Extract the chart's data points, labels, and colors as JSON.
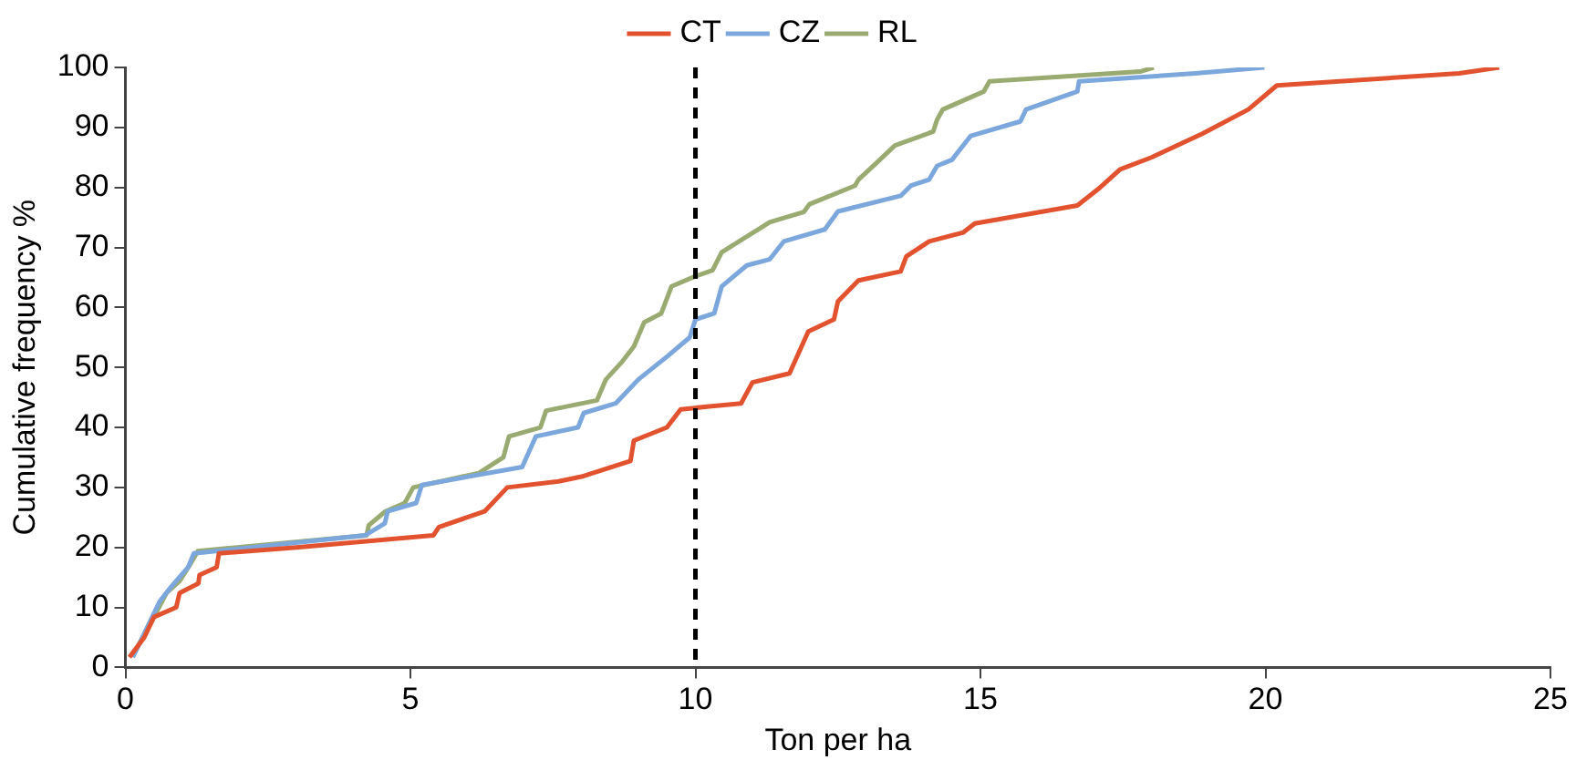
{
  "chart_data": {
    "type": "line",
    "xlabel": "Ton per ha",
    "ylabel": "Cumulative frequency %",
    "xlim": [
      0,
      25
    ],
    "xticks": [
      0,
      5,
      10,
      15,
      20,
      25
    ],
    "ylim": [
      0,
      100
    ],
    "yticks": [
      0,
      10,
      20,
      30,
      40,
      50,
      60,
      70,
      80,
      90,
      100
    ],
    "grid": false,
    "legend": "top",
    "marker": "none",
    "line_style": "solid",
    "ref_lines": [
      {
        "axis": "x",
        "value": 10,
        "color": "#000000",
        "line_style": "dashed"
      }
    ],
    "series": [
      {
        "name": "CT",
        "color": "#e2522f",
        "x": [
          0.07,
          0.33,
          0.5,
          0.89,
          0.95,
          1.28,
          1.3,
          1.6,
          1.64,
          3,
          5.4,
          5.5,
          6.3,
          6.7,
          7.6,
          8.0,
          8.86,
          8.92,
          9.5,
          9.74,
          10.24,
          10.8,
          11.0,
          11.65,
          11.98,
          12.43,
          12.5,
          12.86,
          13.6,
          13.7,
          14.1,
          14.7,
          14.9,
          16.7,
          17.1,
          17.45,
          18.0,
          18.9,
          19.7,
          20.2,
          23.4,
          24.1
        ],
        "values": [
          1.7,
          5,
          8.4,
          10,
          12.4,
          14,
          15.4,
          16.7,
          19,
          20,
          22,
          23.4,
          26,
          30,
          31,
          31.8,
          34.4,
          37.8,
          40,
          43,
          43.5,
          44,
          47.5,
          49,
          56,
          58,
          61,
          64.5,
          66,
          68.5,
          71,
          72.5,
          74,
          77,
          80,
          83,
          85,
          89,
          93,
          97,
          99,
          100
        ]
      },
      {
        "name": "CZ",
        "color": "#7ba7dc",
        "x": [
          0.13,
          0.6,
          0.8,
          1.1,
          1.2,
          4.2,
          4.55,
          4.6,
          5.1,
          5.2,
          6.96,
          7.2,
          7.94,
          8.04,
          8.6,
          9.0,
          9.5,
          9.9,
          10.0,
          10.33,
          10.46,
          10.9,
          11.3,
          11.55,
          12.27,
          12.5,
          13.6,
          13.78,
          14.1,
          14.24,
          14.5,
          14.83,
          15.7,
          15.8,
          16.7,
          16.73,
          18.77,
          19.98
        ],
        "values": [
          1.7,
          11,
          13.4,
          16.7,
          19,
          22,
          24,
          26,
          27.4,
          30.4,
          33.4,
          38.5,
          40,
          42.4,
          44,
          48,
          51.8,
          55,
          58,
          59,
          63.5,
          67,
          68,
          71,
          73,
          76,
          78.6,
          80.3,
          81.3,
          83.6,
          84.6,
          88.6,
          91,
          93,
          96,
          97.7,
          99,
          100
        ]
      },
      {
        "name": "RL",
        "color": "#9aab72",
        "x": [
          0.17,
          0.5,
          0.72,
          0.95,
          1.15,
          1.27,
          4.23,
          4.27,
          4.56,
          4.9,
          5.05,
          6.2,
          6.63,
          6.73,
          7.28,
          7.38,
          8.27,
          8.43,
          8.7,
          8.92,
          9.1,
          9.4,
          9.58,
          10.0,
          10.3,
          10.46,
          11.1,
          11.3,
          11.9,
          12.0,
          12.8,
          12.86,
          13.2,
          13.5,
          14.17,
          14.24,
          14.34,
          15.06,
          15.16,
          17.8,
          18.04
        ],
        "values": [
          2.7,
          8.4,
          12.4,
          14.4,
          17.4,
          19.4,
          22,
          23.7,
          26,
          27.4,
          30,
          32.4,
          35,
          38.5,
          40,
          42.8,
          44.5,
          48,
          50.8,
          53.5,
          57.5,
          59,
          63.5,
          65.2,
          66.2,
          69.2,
          73,
          74.2,
          75.9,
          77.2,
          80.3,
          81.3,
          84.3,
          87,
          89.3,
          91.3,
          93,
          96,
          97.7,
          99.3,
          100
        ]
      }
    ]
  }
}
